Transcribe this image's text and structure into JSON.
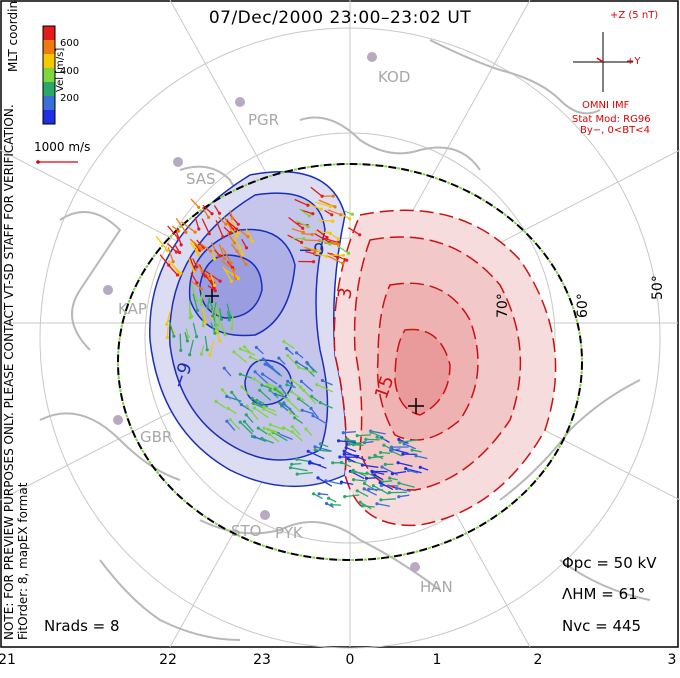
{
  "title": "07/Dec/2000 23:00–23:02 UT",
  "mlt_labels": [
    "21",
    "22",
    "23",
    "0",
    "1",
    "2",
    "3"
  ],
  "lat_labels": [
    "50°",
    "60°",
    "70°"
  ],
  "stations": [
    "KOD",
    "PGR",
    "SAS",
    "KAP",
    "GBR",
    "STO",
    "PYK",
    "HAN"
  ],
  "notes": {
    "preview": "NOTE: FOR PREVIEW PURPOSES ONLY. PLEASE CONTACT VT-SD STAFF FOR VERIFICATION.",
    "fit": "FitOrder: 8, mapEX format"
  },
  "legend": {
    "title": "MLT coordinates",
    "unit": "Vel [m/s]",
    "ticks": [
      "600",
      "400",
      "200"
    ],
    "colors": [
      "#e51a1a",
      "#f07a10",
      "#f5c800",
      "#7ed63c",
      "#2aa86a",
      "#3a6fd8",
      "#1f2fe6"
    ],
    "ref_vector": "1000 m/s"
  },
  "imf": {
    "z_label": "+Z (5 nT)",
    "y_label": "+Y",
    "source": "OMNI IMF",
    "model": "Stat Mod: RG96",
    "condition": "By−, 0<BT<4"
  },
  "contours": {
    "neg_label": "−9",
    "pos_labels": [
      "3",
      "15"
    ],
    "colors": {
      "negative": "#1a2fb8",
      "positive": "#cc1111"
    }
  },
  "stats": {
    "phi_pc": "Φpc = 50 kV",
    "lambda_hm": "ΛHM = 61°",
    "n_vc": "Nvc = 445",
    "n_rads": "Nrads = 8"
  }
}
